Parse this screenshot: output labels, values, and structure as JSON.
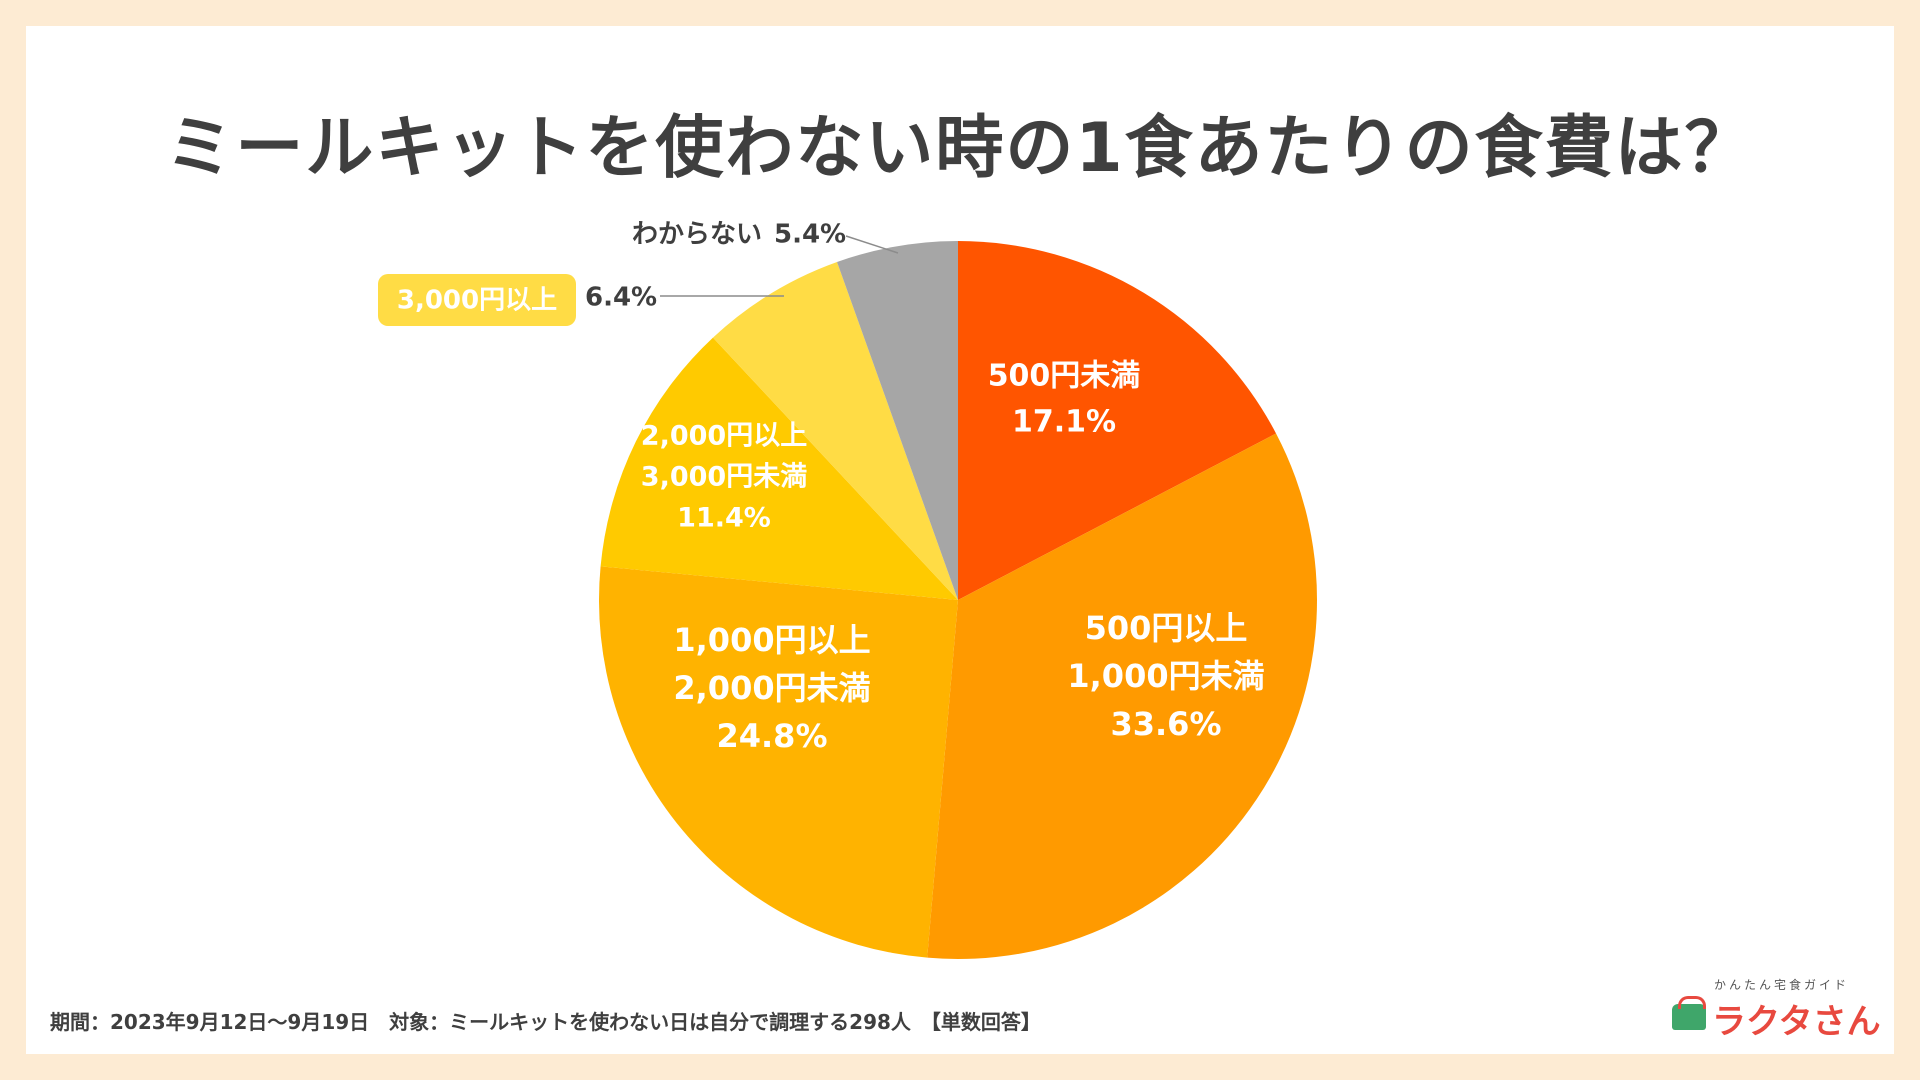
{
  "title": "ミールキットを使わない時の1食あたりの食費は？",
  "footnote": "期間：2023年9月12日〜9月19日　対象：ミールキットを使わない日は自分で調理する298人　【単数回答】",
  "logo": {
    "tagline": "かんたん宅食ガイド",
    "name": "ラクタさん"
  },
  "chart_data": {
    "type": "pie",
    "title": "ミールキットを使わない時の1食あたりの食費は？",
    "unit": "%",
    "start": "12 o'clock, clockwise",
    "slices": [
      {
        "name": "500円未満",
        "lines": [
          "500円未満"
        ],
        "value": 17.1,
        "display": "17.1%",
        "color": "#ff5500",
        "label_style": "inside"
      },
      {
        "name": "500円以上1,000円未満",
        "lines": [
          "500円以上",
          "1,000円未満"
        ],
        "value": 33.6,
        "display": "33.6%",
        "color": "#ff9a00",
        "label_style": "inside"
      },
      {
        "name": "1,000円以上2,000円未満",
        "lines": [
          "1,000円以上",
          "2,000円未満"
        ],
        "value": 24.8,
        "display": "24.8%",
        "color": "#ffb300",
        "label_style": "inside"
      },
      {
        "name": "2,000円以上3,000円未満",
        "lines": [
          "2,000円以上",
          "3,000円未満"
        ],
        "value": 11.4,
        "display": "11.4%",
        "color": "#ffca00",
        "label_style": "inside"
      },
      {
        "name": "3,000円以上",
        "lines": [
          "3,000円以上"
        ],
        "value": 6.4,
        "display": "6.4%",
        "color": "#ffdc45",
        "label_style": "badge"
      },
      {
        "name": "わからない",
        "lines": [
          "わからない"
        ],
        "value": 5.4,
        "display": "5.4%",
        "color": "#a6a6a6",
        "label_style": "plain"
      }
    ]
  }
}
